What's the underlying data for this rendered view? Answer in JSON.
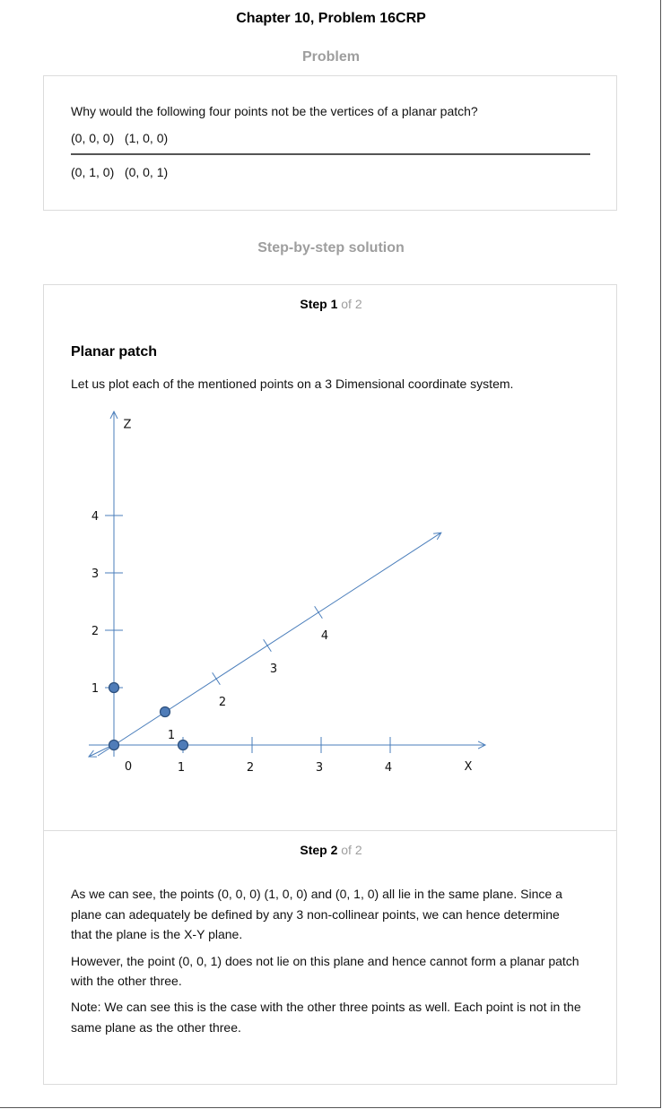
{
  "chapter_title": "Chapter 10, Problem 16CRP",
  "problem_heading": "Problem",
  "problem": {
    "question": "Why would the following four points not be the vertices of a planar patch?",
    "points_row1": "(0, 0, 0)   (1, 0, 0)",
    "points_row2": "(0, 1, 0)   (0, 0, 1)"
  },
  "solution_heading": "Step-by-step solution",
  "step1": {
    "step_word": "Step 1",
    "of_total": "of 2",
    "heading": "Planar patch",
    "text": "Let us plot each of the mentioned points on a 3 Dimensional coordinate system."
  },
  "chart_data": {
    "type": "scatter",
    "title": "",
    "axes": {
      "z": {
        "label": "Z",
        "ticks": [
          "1",
          "2",
          "3",
          "4"
        ]
      },
      "x": {
        "label": "X",
        "ticks": [
          "1",
          "2",
          "3",
          "4"
        ]
      },
      "y": {
        "label": "",
        "ticks": [
          "1",
          "2",
          "3",
          "4"
        ]
      },
      "origin_label": "0"
    },
    "points": [
      {
        "x": 0,
        "y": 0,
        "z": 0
      },
      {
        "x": 1,
        "y": 0,
        "z": 0
      },
      {
        "x": 0,
        "y": 1,
        "z": 0
      },
      {
        "x": 0,
        "y": 0,
        "z": 1
      }
    ],
    "marker_color": "#4f7cb8",
    "axis_color": "#4a7ebb"
  },
  "step2": {
    "step_word": "Step 2",
    "of_total": "of 2",
    "p1_line1": "As we can see, the points (0, 0, 0) (1, 0, 0) and (0, 1, 0) all lie in the same plane. Since a",
    "p1_line2": "plane can adequately be defined by any 3 non-collinear points, we can hence determine",
    "p1_line3": "that the plane is the X-Y plane.",
    "p2_line1": "However, the point (0, 0, 1) does not lie on this plane and hence cannot form a planar patch",
    "p2_line2": "with the other three.",
    "p3_line1": "Note: We can see this is the case with the other three points as well. Each point is not in the",
    "p3_line2": "same plane as the other three."
  }
}
